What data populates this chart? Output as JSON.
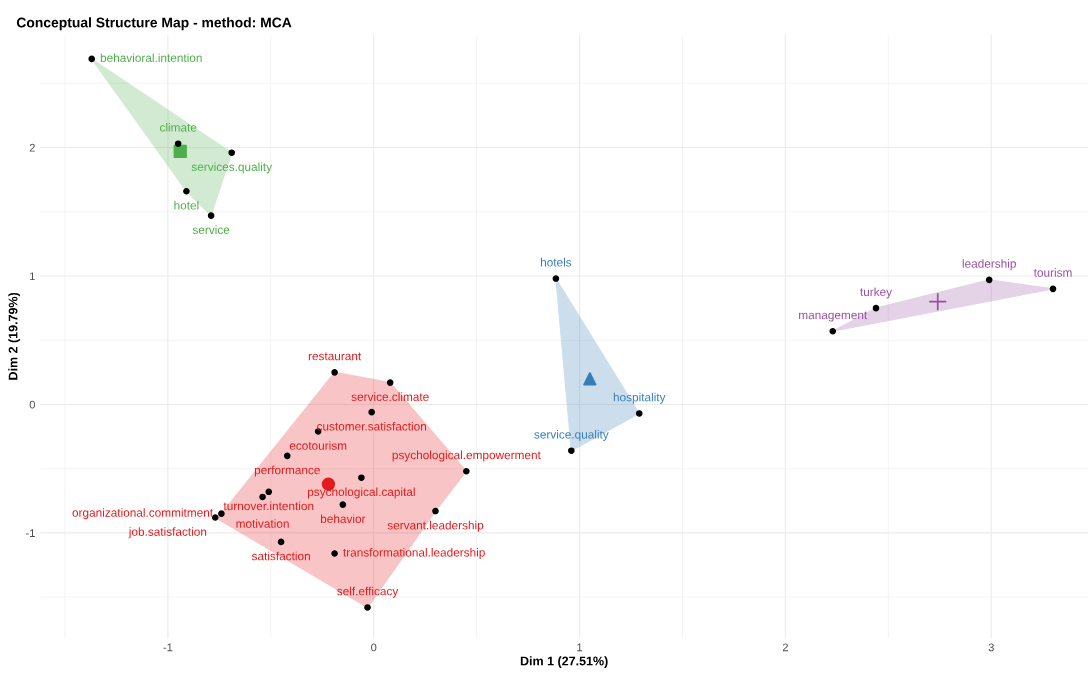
{
  "chart_data": {
    "type": "scatter",
    "title": "Conceptual Structure Map - method: MCA",
    "xlabel": "Dim 1 (27.51%)",
    "ylabel": "Dim 2 (19.79%)",
    "xlim": [
      -1.62,
      3.47
    ],
    "ylim": [
      -1.82,
      2.88
    ],
    "xticks": [
      -1,
      0,
      1,
      2,
      3
    ],
    "yticks": [
      -1,
      0,
      1,
      2
    ],
    "grid": true,
    "legend": false,
    "series": [
      {
        "type": "area",
        "color": "#4daf4a",
        "x": [
          -1.37,
          -0.91,
          -0.79,
          -0.69
        ],
        "values": [
          2.69,
          1.66,
          1.47,
          1.96
        ]
      },
      {
        "color": "#4daf4a",
        "marker": "square",
        "x": [
          -0.94
        ],
        "values": [
          1.97
        ]
      },
      {
        "color": "#000000",
        "marker": "circle",
        "x": [
          -1.37,
          -0.95,
          -0.69,
          -0.91,
          -0.79
        ],
        "values": [
          2.69,
          2.03,
          1.96,
          1.66,
          1.47
        ],
        "value_labels": [
          "behavioral.intention",
          "climate",
          "services.quality",
          "hotel",
          "service"
        ]
      },
      {
        "type": "area",
        "color": "#377eb8",
        "x": [
          0.885,
          0.96,
          1.29
        ],
        "values": [
          0.98,
          -0.36,
          -0.07
        ]
      },
      {
        "color": "#377eb8",
        "marker": "triangle",
        "x": [
          1.05
        ],
        "values": [
          0.2
        ]
      },
      {
        "color": "#000000",
        "marker": "circle",
        "x": [
          0.885,
          1.29,
          0.96
        ],
        "values": [
          0.98,
          -0.07,
          -0.36
        ],
        "value_labels": [
          "hotels",
          "hospitality",
          "service.quality"
        ]
      },
      {
        "type": "area",
        "color": "#984ea3",
        "x": [
          2.23,
          2.44,
          2.99,
          3.3
        ],
        "values": [
          0.57,
          0.75,
          0.97,
          0.9
        ]
      },
      {
        "color": "#984ea3",
        "marker": "cross",
        "x": [
          2.74
        ],
        "values": [
          0.8
        ]
      },
      {
        "color": "#000000",
        "marker": "circle",
        "x": [
          2.99,
          3.3,
          2.44,
          2.23
        ],
        "values": [
          0.97,
          0.9,
          0.75,
          0.57
        ],
        "value_labels": [
          "leadership",
          "tourism",
          "turkey",
          "management"
        ]
      },
      {
        "type": "area",
        "color": "#e41a1c",
        "x": [
          -0.19,
          0.08,
          0.45,
          0.3,
          -0.03,
          -0.77,
          -0.74
        ],
        "values": [
          0.25,
          0.17,
          -0.52,
          -0.83,
          -1.58,
          -0.88,
          -0.85
        ]
      },
      {
        "color": "#e41a1c",
        "marker": "circle",
        "x": [
          -0.22
        ],
        "values": [
          -0.62
        ]
      },
      {
        "color": "#000000",
        "marker": "circle",
        "x": [
          -0.19,
          0.08,
          -0.01,
          -0.27,
          -0.42,
          -0.06,
          0.45,
          -0.51,
          -0.54,
          -0.15,
          0.3,
          -0.74,
          -0.77,
          -0.45,
          -0.19,
          -0.03
        ],
        "values": [
          0.25,
          0.17,
          -0.06,
          -0.21,
          -0.4,
          -0.57,
          -0.52,
          -0.68,
          -0.72,
          -0.78,
          -0.83,
          -0.85,
          -0.88,
          -1.07,
          -1.16,
          -1.58
        ],
        "value_labels": [
          "restaurant",
          "service.climate",
          "customer.satisfaction",
          "ecotourism",
          "performance",
          "psychological.capital",
          "psychological.empowerment",
          "turnover.intention",
          "motivation",
          "behavior",
          "servant.leadership",
          "organizational.commitment",
          "job.satisfaction",
          "satisfaction",
          "transformational.leadership",
          "self.efficacy"
        ]
      }
    ]
  }
}
